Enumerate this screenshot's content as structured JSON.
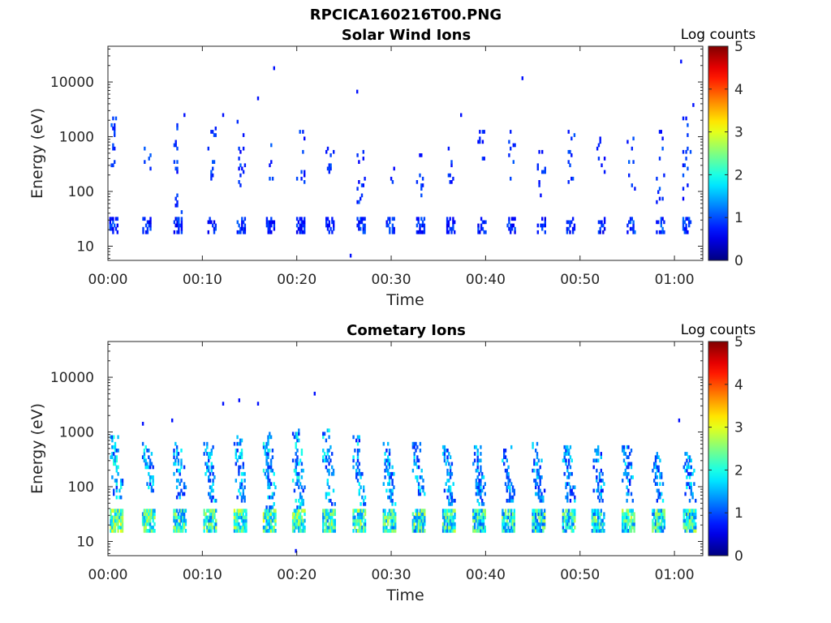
{
  "figure": {
    "title": "RPCICA160216T00.PNG"
  },
  "chart_data": [
    {
      "type": "heatmap",
      "title": "Solar Wind Ions",
      "xlabel": "Time",
      "ylabel": "Energy (eV)",
      "colorbar_label": "Log counts",
      "colorbar_ticks": [
        0,
        1,
        2,
        3,
        4,
        5
      ],
      "colorbar_range": [
        0,
        5
      ],
      "colormap": "jet",
      "x_ticks": [
        "00:00",
        "00:10",
        "00:20",
        "00:30",
        "00:40",
        "00:50",
        "01:00"
      ],
      "x_range_minutes": [
        0,
        63
      ],
      "y_scale": "log",
      "y_range": [
        5.5,
        45000
      ],
      "y_ticks": [
        10,
        100,
        1000,
        10000
      ],
      "y_tick_labels": [
        "10",
        "100",
        "1000",
        "10000"
      ],
      "bursts": [
        {
          "t": 0.6,
          "band": [
            17,
            33
          ],
          "diffuse": [
            300,
            2200
          ],
          "level": 0.8
        },
        {
          "t": 4.1,
          "band": [
            17,
            33
          ],
          "diffuse": [
            250,
            700
          ],
          "level": 0.8
        },
        {
          "t": 7.4,
          "band": [
            17,
            33
          ],
          "diffuse": [
            40,
            2000
          ],
          "level": 0.8
        },
        {
          "t": 11.0,
          "band": [
            17,
            33
          ],
          "diffuse": [
            150,
            2200
          ],
          "level": 0.8
        },
        {
          "t": 14.1,
          "band": [
            17,
            33
          ],
          "diffuse": [
            100,
            2200
          ],
          "level": 0.8
        },
        {
          "t": 17.2,
          "band": [
            17,
            33
          ],
          "diffuse": [
            150,
            800
          ],
          "level": 0.8
        },
        {
          "t": 20.4,
          "band": [
            17,
            33
          ],
          "diffuse": [
            100,
            2200
          ],
          "level": 0.8
        },
        {
          "t": 23.5,
          "band": [
            17,
            33
          ],
          "diffuse": [
            200,
            800
          ],
          "level": 0.8
        },
        {
          "t": 26.8,
          "band": [
            17,
            33
          ],
          "diffuse": [
            60,
            700
          ],
          "level": 0.8
        },
        {
          "t": 29.9,
          "band": [
            17,
            33
          ],
          "diffuse": [
            120,
            300
          ],
          "level": 0.8
        },
        {
          "t": 33.1,
          "band": [
            17,
            33
          ],
          "diffuse": [
            80,
            700
          ],
          "level": 0.8
        },
        {
          "t": 36.3,
          "band": [
            17,
            33
          ],
          "diffuse": [
            150,
            700
          ],
          "level": 0.8
        },
        {
          "t": 39.6,
          "band": [
            17,
            33
          ],
          "diffuse": [
            400,
            1500
          ],
          "level": 0.8
        },
        {
          "t": 42.7,
          "band": [
            17,
            33
          ],
          "diffuse": [
            150,
            1500
          ],
          "level": 0.8
        },
        {
          "t": 45.9,
          "band": [
            17,
            33
          ],
          "diffuse": [
            70,
            700
          ],
          "level": 0.8
        },
        {
          "t": 49.0,
          "band": [
            17,
            33
          ],
          "diffuse": [
            150,
            1500
          ],
          "level": 0.8
        },
        {
          "t": 52.2,
          "band": [
            17,
            33
          ],
          "diffuse": [
            200,
            1200
          ],
          "level": 0.8
        },
        {
          "t": 55.4,
          "band": [
            17,
            33
          ],
          "diffuse": [
            60,
            1500
          ],
          "level": 0.9
        },
        {
          "t": 58.5,
          "band": [
            17,
            33
          ],
          "diffuse": [
            60,
            1500
          ],
          "level": 0.9
        },
        {
          "t": 61.3,
          "band": [
            17,
            33
          ],
          "diffuse": [
            60,
            2500
          ],
          "level": 0.9
        }
      ],
      "isolated_points": [
        [
          17.5,
          18000
        ],
        [
          15.8,
          5200
        ],
        [
          26.3,
          7000
        ],
        [
          43.8,
          12500
        ],
        [
          60.6,
          25000
        ],
        [
          25.6,
          6.5
        ],
        [
          61.9,
          4000
        ],
        [
          8.0,
          2500
        ],
        [
          12.1,
          2600
        ],
        [
          37.3,
          2600
        ]
      ]
    },
    {
      "type": "heatmap",
      "title": "Cometary Ions",
      "xlabel": "Time",
      "ylabel": "Energy (eV)",
      "colorbar_label": "Log counts",
      "colorbar_ticks": [
        0,
        1,
        2,
        3,
        4,
        5
      ],
      "colorbar_range": [
        0,
        5
      ],
      "colormap": "jet",
      "x_ticks": [
        "00:00",
        "00:10",
        "00:20",
        "00:30",
        "00:40",
        "00:50",
        "01:00"
      ],
      "x_range_minutes": [
        0,
        63
      ],
      "y_scale": "log",
      "y_range": [
        5.5,
        45000
      ],
      "y_ticks": [
        10,
        100,
        1000,
        10000
      ],
      "y_tick_labels": [
        "10",
        "100",
        "1000",
        "10000"
      ],
      "bursts": [
        {
          "t": 0.9,
          "band": [
            15,
            40
          ],
          "diffuse": [
            60,
            900
          ],
          "level": 2.3
        },
        {
          "t": 4.3,
          "band": [
            15,
            40
          ],
          "diffuse": [
            80,
            700
          ],
          "level": 2.1
        },
        {
          "t": 7.6,
          "band": [
            15,
            40
          ],
          "diffuse": [
            60,
            700
          ],
          "level": 2.0
        },
        {
          "t": 10.8,
          "band": [
            15,
            40
          ],
          "diffuse": [
            50,
            700
          ],
          "level": 2.1
        },
        {
          "t": 14.0,
          "band": [
            15,
            40
          ],
          "diffuse": [
            50,
            900
          ],
          "level": 2.1
        },
        {
          "t": 17.1,
          "band": [
            15,
            40
          ],
          "diffuse": [
            40,
            1000
          ],
          "level": 2.2
        },
        {
          "t": 20.2,
          "band": [
            15,
            40
          ],
          "diffuse": [
            40,
            1100
          ],
          "level": 2.2
        },
        {
          "t": 23.4,
          "band": [
            15,
            40
          ],
          "diffuse": [
            45,
            1200
          ],
          "level": 2.1
        },
        {
          "t": 26.6,
          "band": [
            15,
            40
          ],
          "diffuse": [
            45,
            900
          ],
          "level": 2.1
        },
        {
          "t": 29.8,
          "band": [
            15,
            40
          ],
          "diffuse": [
            45,
            700
          ],
          "level": 2.0
        },
        {
          "t": 32.9,
          "band": [
            15,
            40
          ],
          "diffuse": [
            45,
            700
          ],
          "level": 2.0
        },
        {
          "t": 36.1,
          "band": [
            15,
            40
          ],
          "diffuse": [
            45,
            600
          ],
          "level": 2.0
        },
        {
          "t": 39.3,
          "band": [
            15,
            40
          ],
          "diffuse": [
            45,
            600
          ],
          "level": 1.9
        },
        {
          "t": 42.4,
          "band": [
            15,
            40
          ],
          "diffuse": [
            50,
            600
          ],
          "level": 1.9
        },
        {
          "t": 45.6,
          "band": [
            15,
            40
          ],
          "diffuse": [
            50,
            700
          ],
          "level": 1.9
        },
        {
          "t": 48.8,
          "band": [
            15,
            40
          ],
          "diffuse": [
            50,
            600
          ],
          "level": 1.9
        },
        {
          "t": 51.9,
          "band": [
            15,
            40
          ],
          "diffuse": [
            50,
            600
          ],
          "level": 1.9
        },
        {
          "t": 55.1,
          "band": [
            15,
            40
          ],
          "diffuse": [
            50,
            550
          ],
          "level": 2.0
        },
        {
          "t": 58.3,
          "band": [
            15,
            40
          ],
          "diffuse": [
            50,
            450
          ],
          "level": 2.0
        },
        {
          "t": 61.6,
          "band": [
            15,
            40
          ],
          "diffuse": [
            50,
            450
          ],
          "level": 2.0
        }
      ],
      "isolated_points": [
        [
          12.1,
          3300
        ],
        [
          13.8,
          4100
        ],
        [
          15.8,
          3500
        ],
        [
          21.8,
          5000
        ],
        [
          60.4,
          1600
        ],
        [
          19.8,
          6.5
        ],
        [
          3.6,
          1400
        ],
        [
          6.7,
          1700
        ]
      ]
    }
  ]
}
